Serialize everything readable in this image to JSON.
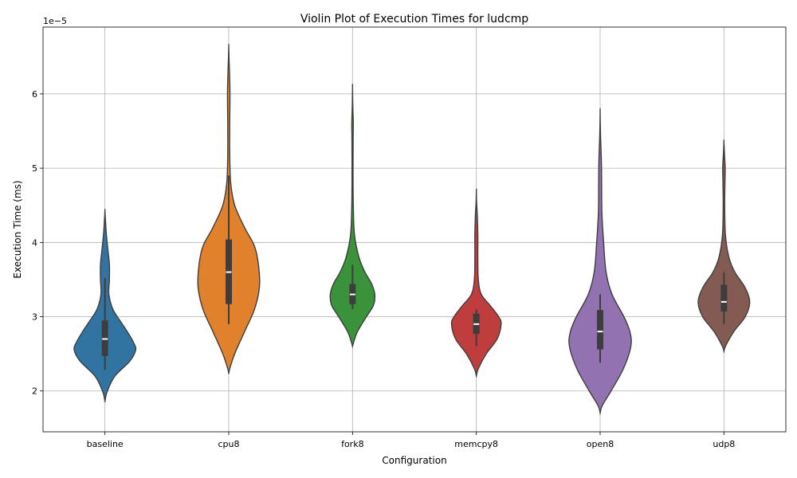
{
  "chart_data": {
    "type": "violin",
    "title": "Violin Plot of Execution Times for ludcmp",
    "xlabel": "Configuration",
    "ylabel": "Execution Time (ms)",
    "y_offset_label": "1e−5",
    "y_ticks": [
      2,
      3,
      4,
      5,
      6
    ],
    "y_tick_labels": [
      "2",
      "3",
      "4",
      "5",
      "6"
    ],
    "ylim": [
      1.45,
      6.9
    ],
    "grid": true,
    "categories": [
      "baseline",
      "cpu8",
      "fork8",
      "memcpy8",
      "open8",
      "udp8"
    ],
    "colors": [
      "#3274a1",
      "#e1812c",
      "#3a923a",
      "#c03d3e",
      "#9372b2",
      "#845b53"
    ],
    "violins": [
      {
        "name": "baseline",
        "box": {
          "q1": 2.47,
          "median": 2.7,
          "q3": 2.95,
          "whisker_low": 2.28,
          "whisker_high": 3.52
        },
        "density": [
          [
            1.85,
            0.0
          ],
          [
            1.9,
            0.01
          ],
          [
            2.0,
            0.05
          ],
          [
            2.2,
            0.2
          ],
          [
            2.4,
            0.5
          ],
          [
            2.55,
            0.62
          ],
          [
            2.65,
            0.58
          ],
          [
            2.8,
            0.45
          ],
          [
            2.95,
            0.3
          ],
          [
            3.1,
            0.16
          ],
          [
            3.3,
            0.08
          ],
          [
            3.5,
            0.09
          ],
          [
            3.7,
            0.09
          ],
          [
            3.9,
            0.06
          ],
          [
            4.1,
            0.03
          ],
          [
            4.3,
            0.01
          ],
          [
            4.43,
            0.0
          ]
        ]
      },
      {
        "name": "cpu8",
        "box": {
          "q1": 3.17,
          "median": 3.6,
          "q3": 4.04,
          "whisker_low": 2.9,
          "whisker_high": 4.9
        },
        "density": [
          [
            2.23,
            0.0
          ],
          [
            2.3,
            0.02
          ],
          [
            2.5,
            0.12
          ],
          [
            2.8,
            0.32
          ],
          [
            3.1,
            0.52
          ],
          [
            3.4,
            0.62
          ],
          [
            3.7,
            0.6
          ],
          [
            3.95,
            0.52
          ],
          [
            4.2,
            0.32
          ],
          [
            4.5,
            0.12
          ],
          [
            4.8,
            0.04
          ],
          [
            5.2,
            0.02
          ],
          [
            5.6,
            0.02
          ],
          [
            6.0,
            0.025
          ],
          [
            6.3,
            0.015
          ],
          [
            6.5,
            0.005
          ],
          [
            6.65,
            0.0
          ]
        ]
      },
      {
        "name": "fork8",
        "box": {
          "q1": 3.17,
          "median": 3.3,
          "q3": 3.44,
          "whisker_low": 3.1,
          "whisker_high": 3.7
        },
        "density": [
          [
            2.6,
            0.0
          ],
          [
            2.65,
            0.02
          ],
          [
            2.8,
            0.1
          ],
          [
            3.0,
            0.28
          ],
          [
            3.15,
            0.42
          ],
          [
            3.3,
            0.45
          ],
          [
            3.45,
            0.38
          ],
          [
            3.6,
            0.25
          ],
          [
            3.8,
            0.13
          ],
          [
            4.1,
            0.04
          ],
          [
            4.5,
            0.015
          ],
          [
            5.0,
            0.01
          ],
          [
            5.4,
            0.012
          ],
          [
            5.6,
            0.015
          ],
          [
            5.85,
            0.005
          ],
          [
            6.1,
            0.0
          ]
        ]
      },
      {
        "name": "memcpy8",
        "box": {
          "q1": 2.77,
          "median": 2.9,
          "q3": 3.04,
          "whisker_low": 2.6,
          "whisker_high": 3.1
        },
        "density": [
          [
            2.2,
            0.0
          ],
          [
            2.3,
            0.04
          ],
          [
            2.5,
            0.2
          ],
          [
            2.7,
            0.42
          ],
          [
            2.9,
            0.5
          ],
          [
            3.0,
            0.45
          ],
          [
            3.15,
            0.28
          ],
          [
            3.3,
            0.1
          ],
          [
            3.5,
            0.04
          ],
          [
            3.8,
            0.03
          ],
          [
            4.1,
            0.03
          ],
          [
            4.35,
            0.02
          ],
          [
            4.55,
            0.005
          ],
          [
            4.7,
            0.0
          ]
        ]
      },
      {
        "name": "open8",
        "box": {
          "q1": 2.56,
          "median": 2.8,
          "q3": 3.09,
          "whisker_low": 2.38,
          "whisker_high": 3.3
        },
        "density": [
          [
            1.7,
            0.0
          ],
          [
            1.8,
            0.04
          ],
          [
            2.0,
            0.22
          ],
          [
            2.3,
            0.47
          ],
          [
            2.6,
            0.62
          ],
          [
            2.8,
            0.6
          ],
          [
            3.0,
            0.48
          ],
          [
            3.3,
            0.24
          ],
          [
            3.6,
            0.12
          ],
          [
            4.0,
            0.07
          ],
          [
            4.4,
            0.035
          ],
          [
            4.8,
            0.03
          ],
          [
            5.1,
            0.025
          ],
          [
            5.4,
            0.01
          ],
          [
            5.6,
            0.003
          ],
          [
            5.78,
            0.0
          ]
        ]
      },
      {
        "name": "udp8",
        "box": {
          "q1": 3.07,
          "median": 3.2,
          "q3": 3.43,
          "whisker_low": 2.9,
          "whisker_high": 3.6
        },
        "density": [
          [
            2.53,
            0.0
          ],
          [
            2.6,
            0.03
          ],
          [
            2.8,
            0.2
          ],
          [
            3.0,
            0.43
          ],
          [
            3.2,
            0.52
          ],
          [
            3.4,
            0.42
          ],
          [
            3.6,
            0.22
          ],
          [
            3.8,
            0.1
          ],
          [
            4.1,
            0.03
          ],
          [
            4.5,
            0.015
          ],
          [
            4.8,
            0.02
          ],
          [
            5.0,
            0.025
          ],
          [
            5.2,
            0.01
          ],
          [
            5.36,
            0.0
          ]
        ]
      }
    ]
  }
}
